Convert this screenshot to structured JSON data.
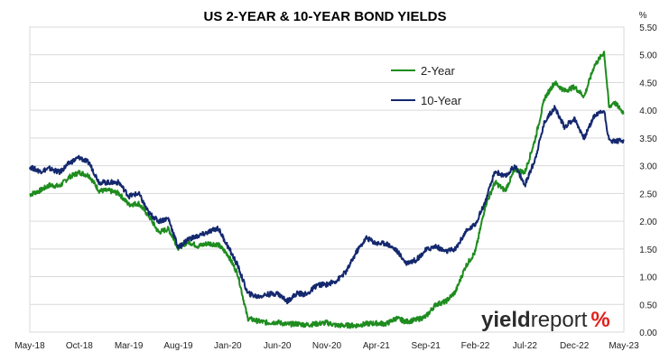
{
  "chart_data": {
    "type": "line",
    "title": "US 2-YEAR & 10-YEAR BOND YIELDS",
    "unit": "%",
    "ylim": [
      0,
      5.5
    ],
    "yticks": [
      "0.00",
      "0.50",
      "1.00",
      "1.50",
      "2.00",
      "2.50",
      "3.00",
      "3.50",
      "4.00",
      "4.50",
      "5.00",
      "5.50"
    ],
    "xticks": [
      "May-18",
      "Oct-18",
      "Mar-19",
      "Aug-19",
      "Jan-20",
      "Jun-20",
      "Nov-20",
      "Apr-21",
      "Sep-21",
      "Feb-22",
      "Jul-22",
      "Dec-22",
      "May-23"
    ],
    "grid": true,
    "legend": "top-center",
    "brand": {
      "part1": "yield",
      "part2": "report",
      "part3": "%"
    },
    "series": [
      {
        "name": "2-Year",
        "color": "#1e8c1e",
        "values": [
          [
            "May-18",
            2.48
          ],
          [
            "Jun-18",
            2.55
          ],
          [
            "Jul-18",
            2.65
          ],
          [
            "Aug-18",
            2.63
          ],
          [
            "Sep-18",
            2.8
          ],
          [
            "Oct-18",
            2.88
          ],
          [
            "Nov-18",
            2.82
          ],
          [
            "Dec-18",
            2.55
          ],
          [
            "Jan-19",
            2.55
          ],
          [
            "Feb-19",
            2.5
          ],
          [
            "Mar-19",
            2.3
          ],
          [
            "Apr-19",
            2.32
          ],
          [
            "May-19",
            2.1
          ],
          [
            "Jun-19",
            1.8
          ],
          [
            "Jul-19",
            1.86
          ],
          [
            "Aug-19",
            1.52
          ],
          [
            "Sep-19",
            1.63
          ],
          [
            "Oct-19",
            1.55
          ],
          [
            "Nov-19",
            1.6
          ],
          [
            "Dec-19",
            1.58
          ],
          [
            "Jan-20",
            1.4
          ],
          [
            "Feb-20",
            1.05
          ],
          [
            "Mar-20",
            0.25
          ],
          [
            "Apr-20",
            0.2
          ],
          [
            "May-20",
            0.17
          ],
          [
            "Jun-20",
            0.18
          ],
          [
            "Jul-20",
            0.14
          ],
          [
            "Aug-20",
            0.15
          ],
          [
            "Sep-20",
            0.13
          ],
          [
            "Oct-20",
            0.15
          ],
          [
            "Nov-20",
            0.17
          ],
          [
            "Dec-20",
            0.12
          ],
          [
            "Jan-21",
            0.12
          ],
          [
            "Feb-21",
            0.12
          ],
          [
            "Mar-21",
            0.15
          ],
          [
            "Apr-21",
            0.16
          ],
          [
            "May-21",
            0.15
          ],
          [
            "Jun-21",
            0.25
          ],
          [
            "Jul-21",
            0.19
          ],
          [
            "Aug-21",
            0.22
          ],
          [
            "Sep-21",
            0.28
          ],
          [
            "Oct-21",
            0.5
          ],
          [
            "Nov-21",
            0.55
          ],
          [
            "Dec-21",
            0.73
          ],
          [
            "Jan-22",
            1.18
          ],
          [
            "Feb-22",
            1.45
          ],
          [
            "Mar-22",
            2.28
          ],
          [
            "Apr-22",
            2.7
          ],
          [
            "May-22",
            2.55
          ],
          [
            "Jun-22",
            2.93
          ],
          [
            "Jul-22",
            2.88
          ],
          [
            "Aug-22",
            3.45
          ],
          [
            "Sep-22",
            4.22
          ],
          [
            "Oct-22",
            4.5
          ],
          [
            "Nov-22",
            4.35
          ],
          [
            "Dec-22",
            4.42
          ],
          [
            "Jan-23",
            4.25
          ],
          [
            "Feb-23",
            4.8
          ],
          [
            "Mar-23",
            5.05
          ],
          [
            "Mar-23b",
            4.05
          ],
          [
            "Apr-23",
            4.15
          ],
          [
            "May-23",
            3.95
          ]
        ]
      },
      {
        "name": "10-Year",
        "color": "#14286e",
        "values": [
          [
            "May-18",
            2.98
          ],
          [
            "Jun-18",
            2.9
          ],
          [
            "Jul-18",
            2.95
          ],
          [
            "Aug-18",
            2.88
          ],
          [
            "Sep-18",
            3.05
          ],
          [
            "Oct-18",
            3.15
          ],
          [
            "Nov-18",
            3.05
          ],
          [
            "Dec-18",
            2.7
          ],
          [
            "Jan-19",
            2.7
          ],
          [
            "Feb-19",
            2.7
          ],
          [
            "Mar-19",
            2.45
          ],
          [
            "Apr-19",
            2.5
          ],
          [
            "May-19",
            2.15
          ],
          [
            "Jun-19",
            2.0
          ],
          [
            "Jul-19",
            2.05
          ],
          [
            "Aug-19",
            1.52
          ],
          [
            "Sep-19",
            1.68
          ],
          [
            "Oct-19",
            1.73
          ],
          [
            "Nov-19",
            1.8
          ],
          [
            "Dec-19",
            1.88
          ],
          [
            "Jan-20",
            1.55
          ],
          [
            "Feb-20",
            1.2
          ],
          [
            "Mar-20",
            0.7
          ],
          [
            "Apr-20",
            0.64
          ],
          [
            "May-20",
            0.68
          ],
          [
            "Jun-20",
            0.7
          ],
          [
            "Jul-20",
            0.56
          ],
          [
            "Aug-20",
            0.7
          ],
          [
            "Sep-20",
            0.68
          ],
          [
            "Oct-20",
            0.85
          ],
          [
            "Nov-20",
            0.86
          ],
          [
            "Dec-20",
            0.93
          ],
          [
            "Jan-21",
            1.1
          ],
          [
            "Feb-21",
            1.45
          ],
          [
            "Mar-21",
            1.7
          ],
          [
            "Apr-21",
            1.6
          ],
          [
            "May-21",
            1.6
          ],
          [
            "Jun-21",
            1.48
          ],
          [
            "Jul-21",
            1.25
          ],
          [
            "Aug-21",
            1.3
          ],
          [
            "Sep-21",
            1.48
          ],
          [
            "Oct-21",
            1.55
          ],
          [
            "Nov-21",
            1.45
          ],
          [
            "Dec-21",
            1.5
          ],
          [
            "Jan-22",
            1.8
          ],
          [
            "Feb-22",
            1.95
          ],
          [
            "Mar-22",
            2.35
          ],
          [
            "Apr-22",
            2.9
          ],
          [
            "May-22",
            2.8
          ],
          [
            "Jun-22",
            3.0
          ],
          [
            "Jul-22",
            2.65
          ],
          [
            "Aug-22",
            3.1
          ],
          [
            "Sep-22",
            3.8
          ],
          [
            "Oct-22",
            4.05
          ],
          [
            "Nov-22",
            3.7
          ],
          [
            "Dec-22",
            3.85
          ],
          [
            "Jan-23",
            3.5
          ],
          [
            "Feb-23",
            3.9
          ],
          [
            "Mar-23",
            4.0
          ],
          [
            "Mar-23b",
            3.45
          ],
          [
            "Apr-23",
            3.45
          ],
          [
            "May-23",
            3.45
          ]
        ]
      }
    ]
  }
}
